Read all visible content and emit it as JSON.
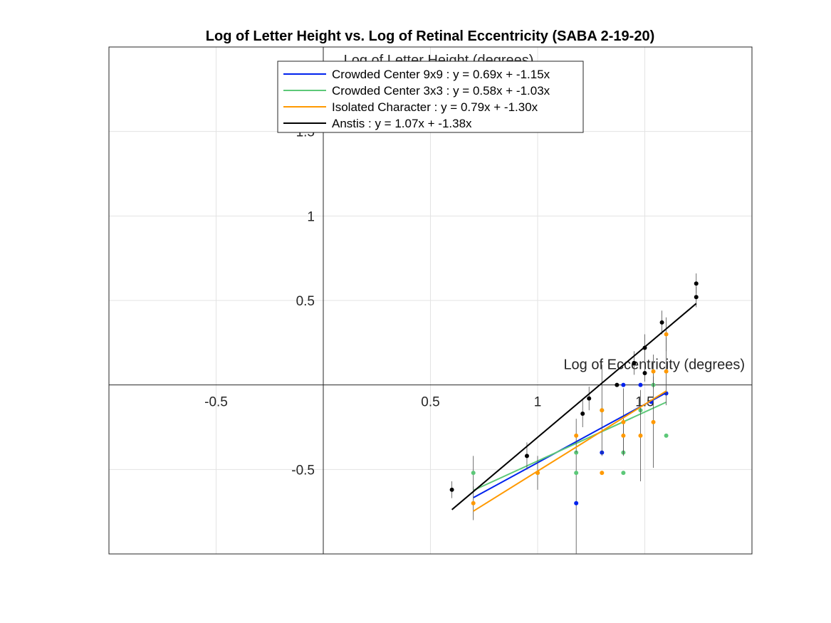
{
  "chart_data": {
    "type": "scatter",
    "title": "Log of Letter Height vs. Log of Retinal Eccentricity (SABA 2-19-20)",
    "xlabel": "Log of Eccentricity (degrees)",
    "ylabel": "Log of Letter Height (degrees)",
    "xlim": [
      -1,
      2
    ],
    "ylim": [
      -1,
      2
    ],
    "xticks": [
      -0.5,
      0.5,
      1,
      1.5
    ],
    "yticks": [
      -0.5,
      0.5,
      1,
      1.5
    ],
    "xtick_labels": [
      "-0.5",
      "0.5",
      "1",
      "1.5"
    ],
    "ytick_labels": [
      "-0.5",
      "0.5",
      "1",
      "1.5"
    ],
    "grid": true,
    "legend_position": "top-center",
    "series": [
      {
        "name": "Crowded Center 9x9 : y = 0.69x + -1.15x",
        "color": "#0022ee",
        "fit": {
          "slope": 0.69,
          "intercept": -1.15,
          "x_range": [
            0.7,
            1.6
          ]
        },
        "points": [
          {
            "x": 1.18,
            "y": -0.7,
            "err": 0.3
          },
          {
            "x": 1.3,
            "y": -0.4,
            "err": 0.0
          },
          {
            "x": 1.4,
            "y": 0.0,
            "err": 0.0
          },
          {
            "x": 1.48,
            "y": 0.0,
            "err": 0.0
          },
          {
            "x": 1.53,
            "y": -0.1,
            "err": 0.0
          },
          {
            "x": 1.6,
            "y": -0.05,
            "err": 0.0
          }
        ]
      },
      {
        "name": "Crowded Center 3x3 : y = 0.58x + -1.03x",
        "color": "#5cc878",
        "fit": {
          "slope": 0.58,
          "intercept": -1.03,
          "x_range": [
            0.7,
            1.6
          ]
        },
        "points": [
          {
            "x": 0.7,
            "y": -0.52,
            "err": 0.1
          },
          {
            "x": 1.0,
            "y": -0.52,
            "err": 0.0
          },
          {
            "x": 1.18,
            "y": -0.52,
            "err": 0.0
          },
          {
            "x": 1.18,
            "y": -0.4,
            "err": 0.0
          },
          {
            "x": 1.3,
            "y": -0.15,
            "err": 0.0
          },
          {
            "x": 1.4,
            "y": -0.52,
            "err": 0.0
          },
          {
            "x": 1.4,
            "y": -0.4,
            "err": 0.0
          },
          {
            "x": 1.48,
            "y": -0.15,
            "err": 0.0
          },
          {
            "x": 1.54,
            "y": 0.0,
            "err": 0.0
          },
          {
            "x": 1.6,
            "y": -0.3,
            "err": 0.0
          }
        ]
      },
      {
        "name": "Isolated Character : y = 0.79x + -1.30x",
        "color": "#ff9900",
        "fit": {
          "slope": 0.79,
          "intercept": -1.3,
          "x_range": [
            0.7,
            1.6
          ]
        },
        "points": [
          {
            "x": 0.7,
            "y": -0.7,
            "err": 0.1
          },
          {
            "x": 1.0,
            "y": -0.52,
            "err": 0.1
          },
          {
            "x": 1.18,
            "y": -0.3,
            "err": 0.1
          },
          {
            "x": 1.3,
            "y": -0.15,
            "err": 0.27
          },
          {
            "x": 1.3,
            "y": -0.52,
            "err": 0.0
          },
          {
            "x": 1.4,
            "y": -0.22,
            "err": 0.2
          },
          {
            "x": 1.4,
            "y": -0.3,
            "err": 0.1
          },
          {
            "x": 1.48,
            "y": -0.3,
            "err": 0.27
          },
          {
            "x": 1.54,
            "y": -0.22,
            "err": 0.27
          },
          {
            "x": 1.54,
            "y": 0.08,
            "err": 0.1
          },
          {
            "x": 1.6,
            "y": 0.3,
            "err": 0.1
          },
          {
            "x": 1.6,
            "y": 0.08,
            "err": 0.2
          }
        ]
      },
      {
        "name": "Anstis : y = 1.07x + -1.38x",
        "color": "#000000",
        "fit": {
          "slope": 1.07,
          "intercept": -1.38,
          "x_range": [
            0.6,
            1.74
          ]
        },
        "points": [
          {
            "x": 0.6,
            "y": -0.62,
            "err": 0.05
          },
          {
            "x": 0.95,
            "y": -0.42,
            "err": 0.08
          },
          {
            "x": 1.21,
            "y": -0.17,
            "err": 0.08
          },
          {
            "x": 1.24,
            "y": -0.08,
            "err": 0.07
          },
          {
            "x": 1.37,
            "y": 0.0,
            "err": 0.0
          },
          {
            "x": 1.45,
            "y": 0.13,
            "err": 0.07
          },
          {
            "x": 1.5,
            "y": 0.22,
            "err": 0.08
          },
          {
            "x": 1.5,
            "y": 0.07,
            "err": 0.05
          },
          {
            "x": 1.58,
            "y": 0.37,
            "err": 0.07
          },
          {
            "x": 1.74,
            "y": 0.6,
            "err": 0.06
          },
          {
            "x": 1.74,
            "y": 0.52,
            "err": 0.06
          }
        ]
      }
    ]
  }
}
